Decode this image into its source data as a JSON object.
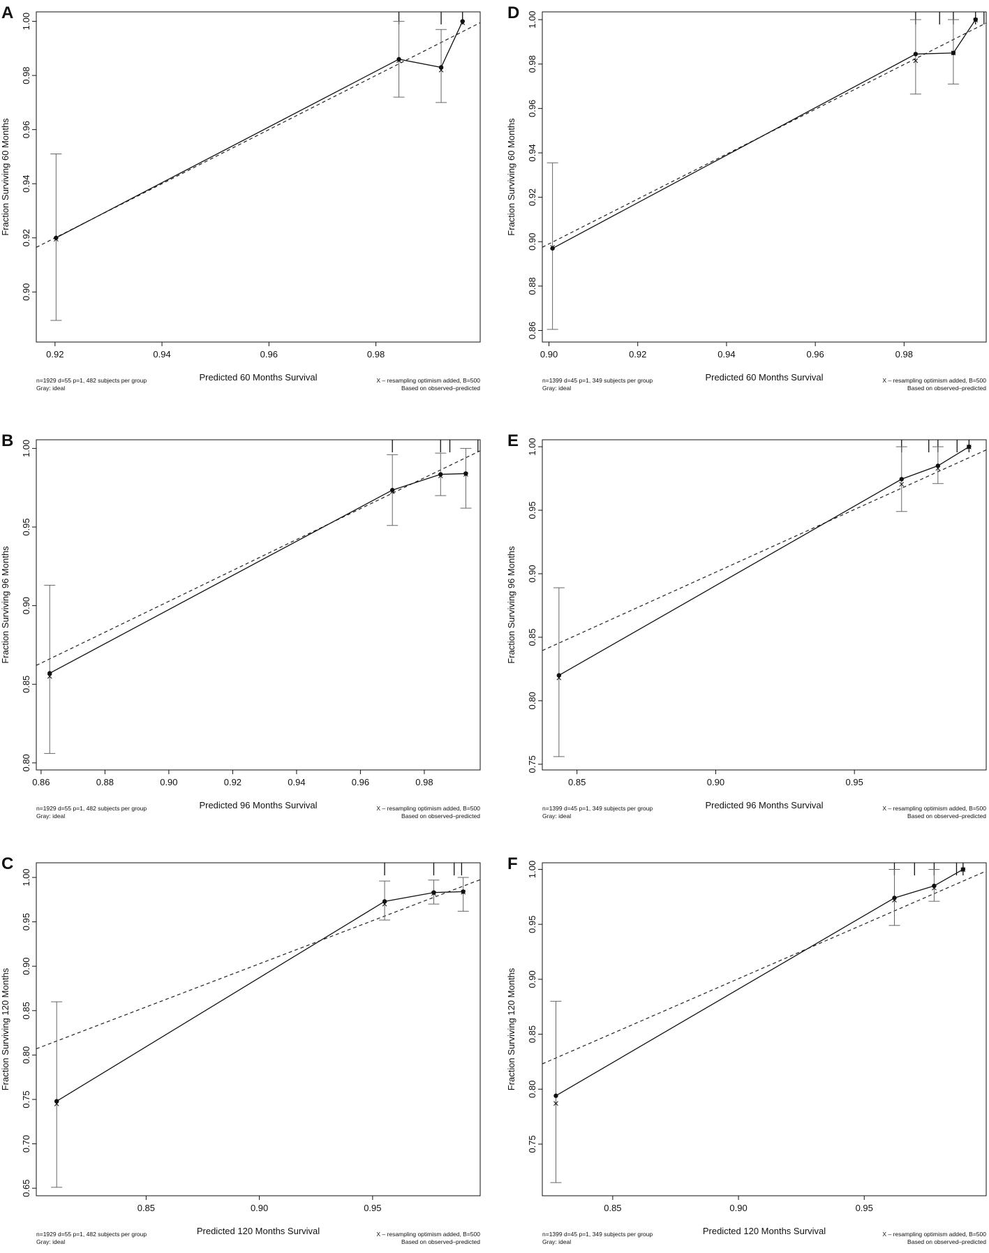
{
  "chart_data": [
    {
      "type": "line",
      "panel": "A",
      "xlabel": "Predicted  60 Months Survival",
      "ylabel": "Fraction Surviving 60 Months",
      "xlim": [
        0.9165,
        0.9995
      ],
      "ylim": [
        0.8815,
        1.0035
      ],
      "xticks": [
        0.92,
        0.94,
        0.96,
        0.98
      ],
      "xtick_labels": [
        "0.92",
        "0.94",
        "0.96",
        "0.98"
      ],
      "yticks": [
        0.9,
        0.92,
        0.94,
        0.96,
        0.98,
        1.0
      ],
      "ytick_labels": [
        "0.90",
        "0.92",
        "0.94",
        "0.96",
        "0.98",
        "1.00"
      ],
      "ideal": [
        [
          0.9165,
          0.9165
        ],
        [
          0.9995,
          0.9995
        ]
      ],
      "observed": [
        [
          0.9202,
          0.92
        ],
        [
          0.9843,
          0.986
        ],
        [
          0.9922,
          0.983
        ],
        [
          0.9962,
          1.0
        ]
      ],
      "corrected": [
        [
          0.9202,
          0.9195
        ],
        [
          0.9843,
          0.9855
        ],
        [
          0.9922,
          0.982
        ],
        [
          0.9962,
          0.9995
        ]
      ],
      "error_bars": [
        [
          0.9202,
          0.8895,
          0.951
        ],
        [
          0.9843,
          0.972,
          1.0
        ],
        [
          0.9922,
          0.97,
          0.997
        ]
      ],
      "rug": [
        0.9843,
        0.9922,
        0.9962
      ],
      "footnote_left": [
        "n=1929 d=55 p=1, 482 subjects per group",
        "Gray: ideal"
      ],
      "footnote_right": [
        "X – resampling optimism added, B=500",
        "Based on observed–predicted"
      ]
    },
    {
      "type": "line",
      "panel": "B",
      "xlabel": "Predicted  96 Months Survival",
      "ylabel": "Fraction Surviving 96 Months",
      "xlim": [
        0.8585,
        0.9975
      ],
      "ylim": [
        0.7955,
        1.0055
      ],
      "xticks": [
        0.86,
        0.88,
        0.9,
        0.92,
        0.94,
        0.96,
        0.98
      ],
      "xtick_labels": [
        "0.86",
        "0.88",
        "0.90",
        "0.92",
        "0.94",
        "0.96",
        "0.98"
      ],
      "yticks": [
        0.8,
        0.85,
        0.9,
        0.95,
        1.0
      ],
      "ytick_labels": [
        "0.80",
        "0.85",
        "0.90",
        "0.95",
        "1.00"
      ],
      "ideal": [
        [
          0.8585,
          0.862
        ],
        [
          0.9975,
          0.9985
        ]
      ],
      "observed": [
        [
          0.8627,
          0.857
        ],
        [
          0.97,
          0.9735
        ],
        [
          0.9851,
          0.9835
        ],
        [
          0.993,
          0.984
        ]
      ],
      "corrected": [
        [
          0.8627,
          0.855
        ],
        [
          0.97,
          0.9725
        ],
        [
          0.9851,
          0.9825
        ],
        [
          0.993,
          0.9835
        ]
      ],
      "error_bars": [
        [
          0.8627,
          0.806,
          0.913
        ],
        [
          0.97,
          0.951,
          0.996
        ],
        [
          0.9851,
          0.97,
          0.997
        ],
        [
          0.993,
          0.962,
          1.0
        ]
      ],
      "rug": [
        0.97,
        0.9851,
        0.988,
        0.9968
      ],
      "footnote_left": [
        "n=1929 d=55 p=1, 482 subjects per group",
        "Gray: ideal"
      ],
      "footnote_right": [
        "X – resampling optimism added, B=500",
        "Based on observed–predicted"
      ]
    },
    {
      "type": "line",
      "panel": "C",
      "xlabel": "Predicted  120 Months Survival",
      "ylabel": "Fraction Surviving 120 Months",
      "xlim": [
        0.8015,
        0.9975
      ],
      "ylim": [
        0.6415,
        1.0165
      ],
      "xticks": [
        0.85,
        0.9,
        0.95
      ],
      "xtick_labels": [
        "0.85",
        "0.90",
        "0.95"
      ],
      "yticks": [
        0.65,
        0.7,
        0.75,
        0.8,
        0.85,
        0.9,
        0.95,
        1.0
      ],
      "ytick_labels": [
        "0.65",
        "0.70",
        "0.75",
        "0.80",
        "0.85",
        "0.90",
        "0.95",
        "1.00"
      ],
      "ideal": [
        [
          0.8015,
          0.807
        ],
        [
          0.9975,
          0.9975
        ]
      ],
      "observed": [
        [
          0.8105,
          0.748
        ],
        [
          0.9553,
          0.973
        ],
        [
          0.977,
          0.983
        ],
        [
          0.99,
          0.984
        ]
      ],
      "corrected": [
        [
          0.8105,
          0.745
        ],
        [
          0.9553,
          0.97
        ],
        [
          0.977,
          0.982
        ],
        [
          0.99,
          0.9835
        ]
      ],
      "error_bars": [
        [
          0.8105,
          0.651,
          0.86
        ],
        [
          0.9553,
          0.952,
          0.996
        ],
        [
          0.977,
          0.97,
          0.997
        ],
        [
          0.99,
          0.962,
          1.0
        ]
      ],
      "rug": [
        0.9553,
        0.977,
        0.986,
        0.9893
      ],
      "footnote_left": [
        "n=1929 d=55 p=1, 482 subjects per group",
        "Gray: ideal"
      ],
      "footnote_right": [
        "X – resampling optimism added, B=500",
        "Based on observed–predicted"
      ]
    },
    {
      "type": "line",
      "panel": "D",
      "xlabel": "Predicted  60 Months Survival",
      "ylabel": "Fraction Surviving 60 Months",
      "xlim": [
        0.8985,
        0.9985
      ],
      "ylim": [
        0.8548,
        1.0035
      ],
      "xticks": [
        0.9,
        0.92,
        0.94,
        0.96,
        0.98
      ],
      "xtick_labels": [
        "0.90",
        "0.92",
        "0.94",
        "0.96",
        "0.98"
      ],
      "yticks": [
        0.86,
        0.88,
        0.9,
        0.92,
        0.94,
        0.96,
        0.98,
        1.0
      ],
      "ytick_labels": [
        "0.86",
        "0.88",
        "0.90",
        "0.92",
        "0.94",
        "0.96",
        "0.98",
        "1.00"
      ],
      "ideal": [
        [
          0.8985,
          0.8975
        ],
        [
          0.9985,
          0.9985
        ]
      ],
      "observed": [
        [
          0.9008,
          0.897
        ],
        [
          0.9826,
          0.9845
        ],
        [
          0.9911,
          0.985
        ],
        [
          0.9961,
          1.0
        ]
      ],
      "corrected": [
        [
          0.9008,
          0.8975
        ],
        [
          0.9826,
          0.9815
        ],
        [
          0.9911,
          0.985
        ],
        [
          0.9961,
          0.9998
        ]
      ],
      "error_bars": [
        [
          0.9008,
          0.8605,
          0.9355
        ],
        [
          0.9826,
          0.9665,
          1.0
        ],
        [
          0.9911,
          0.971,
          1.0
        ]
      ],
      "rug": [
        0.9826,
        0.988,
        0.9911,
        0.9961,
        0.998
      ],
      "footnote_left": [
        "n=1399 d=45 p=1, 349 subjects per group",
        "Gray: ideal"
      ],
      "footnote_right": [
        "X – resampling optimism added, B=500",
        "Based on observed–predicted"
      ]
    },
    {
      "type": "line",
      "panel": "E",
      "xlabel": "Predicted  96 Months Survival",
      "ylabel": "Fraction Surviving 96 Months",
      "xlim": [
        0.8375,
        0.9975
      ],
      "ylim": [
        0.7455,
        1.0055
      ],
      "xticks": [
        0.85,
        0.9,
        0.95
      ],
      "xtick_labels": [
        "0.85",
        "0.90",
        "0.95"
      ],
      "yticks": [
        0.75,
        0.8,
        0.85,
        0.9,
        0.95,
        1.0
      ],
      "ytick_labels": [
        "0.75",
        "0.80",
        "0.85",
        "0.90",
        "0.95",
        "1.00"
      ],
      "ideal": [
        [
          0.8375,
          0.8395
        ],
        [
          0.9975,
          0.9975
        ]
      ],
      "observed": [
        [
          0.8435,
          0.82
        ],
        [
          0.967,
          0.9745
        ],
        [
          0.9801,
          0.985
        ],
        [
          0.9913,
          1.0
        ]
      ],
      "corrected": [
        [
          0.8435,
          0.818
        ],
        [
          0.967,
          0.9705
        ],
        [
          0.9801,
          0.983
        ],
        [
          0.9913,
          0.9998
        ]
      ],
      "error_bars": [
        [
          0.8435,
          0.756,
          0.889
        ],
        [
          0.967,
          0.949,
          1.0
        ],
        [
          0.9801,
          0.971,
          1.0
        ]
      ],
      "rug": [
        0.967,
        0.9768,
        0.9801,
        0.987,
        0.9913
      ],
      "footnote_left": [
        "n=1399 d=45 p=1, 349 subjects per group",
        "Gray: ideal"
      ],
      "footnote_right": [
        "X – resampling optimism added, B=500",
        "Based on observed–predicted"
      ]
    },
    {
      "type": "line",
      "panel": "F",
      "xlabel": "Predicted  120 Months Survival",
      "ylabel": "Fraction Surviving 120 Months",
      "xlim": [
        0.822,
        0.9985
      ],
      "ylim": [
        0.703,
        1.006
      ],
      "xticks": [
        0.85,
        0.9,
        0.95
      ],
      "xtick_labels": [
        "0.85",
        "0.90",
        "0.95"
      ],
      "yticks": [
        0.75,
        0.8,
        0.85,
        0.9,
        0.95,
        1.0
      ],
      "ytick_labels": [
        "0.75",
        "0.80",
        "0.85",
        "0.90",
        "0.95",
        "1.00"
      ],
      "ideal": [
        [
          0.822,
          0.823
        ],
        [
          0.9985,
          0.9985
        ]
      ],
      "observed": [
        [
          0.8274,
          0.794
        ],
        [
          0.962,
          0.974
        ],
        [
          0.9778,
          0.985
        ],
        [
          0.9893,
          1.0
        ]
      ],
      "corrected": [
        [
          0.8274,
          0.787
        ],
        [
          0.962,
          0.972
        ],
        [
          0.9778,
          0.983
        ],
        [
          0.9893,
          0.9998
        ]
      ],
      "error_bars": [
        [
          0.8274,
          0.715,
          0.88
        ],
        [
          0.962,
          0.949,
          1.0
        ],
        [
          0.9778,
          0.971,
          1.0
        ]
      ],
      "rug": [
        0.962,
        0.97,
        0.9778,
        0.9867,
        0.9893
      ],
      "footnote_left": [
        "n=1399 d=45 p=1, 349 subjects per group",
        "Gray: ideal"
      ],
      "footnote_right": [
        "X – resampling optimism added, B=500",
        "Based on observed–predicted"
      ]
    }
  ],
  "colors": {
    "ink": "#111111",
    "ideal": "#222222",
    "error_bar": "#666666"
  }
}
